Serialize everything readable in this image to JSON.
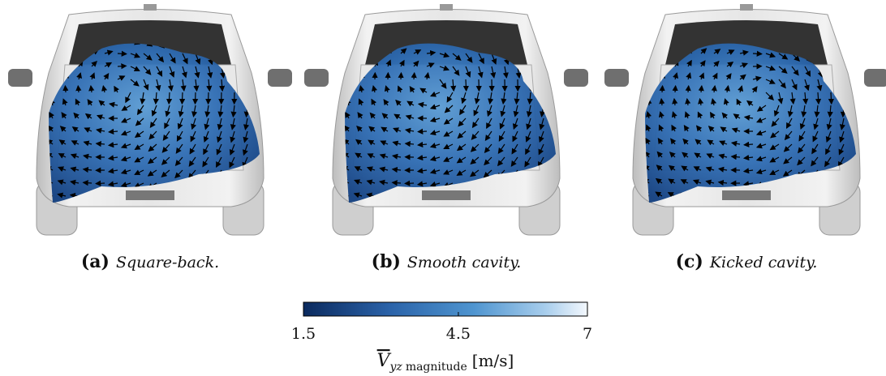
{
  "panels": [
    {
      "tag": "(a)",
      "caption": "Square-back."
    },
    {
      "tag": "(b)",
      "caption": "Smooth cavity."
    },
    {
      "tag": "(c)",
      "caption": "Kicked cavity."
    }
  ],
  "colorbar": {
    "lim": [
      1.5,
      7
    ],
    "ticks": [
      1.5,
      4.5,
      7
    ],
    "label": {
      "symbol": "V",
      "subscript": "yz",
      "text": "magnitude",
      "unit": "[m/s]"
    }
  }
}
